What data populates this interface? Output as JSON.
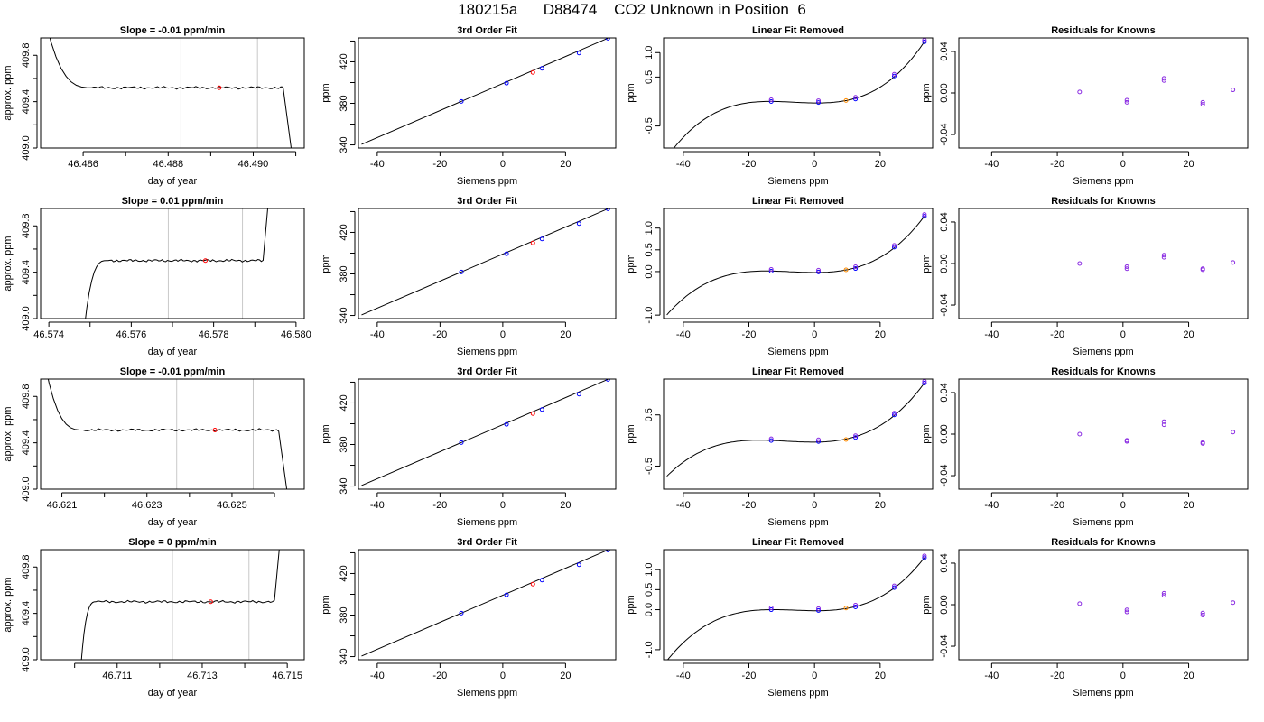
{
  "title": "180215a      D88474    CO2 Unknown in Position  6",
  "colors": {
    "line": "#000000",
    "time_marker": "#c8c8c8",
    "known_point": "#0000ff",
    "unknown_point": "#ff0000",
    "unknown_fit_point": "#ff8c00",
    "residual_point": "#8a2be2"
  },
  "chart_data": [
    {
      "type": "line",
      "row": 1,
      "col": 1,
      "title": "Slope =  -0.01  ppm/min",
      "xlabel": "day of year",
      "ylabel": "approx. ppm",
      "xlim": [
        46.485,
        46.4912
      ],
      "ylim": [
        409.0,
        409.95
      ],
      "xticks": [
        46.486,
        46.487,
        46.488,
        46.489,
        46.49,
        46.491
      ],
      "xtick_labels": [
        "46.486",
        "",
        "46.488",
        "",
        "46.490",
        ""
      ],
      "yticks": [
        409.0,
        409.2,
        409.4,
        409.6,
        409.8
      ],
      "ytick_labels": [
        "409.0",
        "",
        "409.4",
        "",
        "409.8"
      ],
      "vlines": [
        46.4883,
        46.4901
      ],
      "unknown_marker": [
        46.4892,
        409.52
      ],
      "trace_level": 409.52,
      "trace_start": 46.4862,
      "trace_end": 46.4907,
      "rise_start": 46.485,
      "rise_start_value": 410.3,
      "drop_end": 46.491,
      "drop_end_value": 408.7,
      "edge": "start-high-end-drop"
    },
    {
      "type": "line",
      "row": 1,
      "col": 2,
      "title": "3rd Order Fit",
      "xlabel": "Siemens ppm",
      "ylabel": "ppm",
      "xlim": [
        -46,
        36
      ],
      "ylim": [
        337,
        443
      ],
      "xticks": [
        -40,
        -20,
        0,
        20
      ],
      "xtick_labels": [
        "-40",
        "-20",
        "0",
        "20"
      ],
      "yticks": [
        340,
        360,
        380,
        400,
        420,
        440
      ],
      "ytick_labels": [
        "340",
        "",
        "380",
        "",
        "420",
        ""
      ],
      "line": [
        [
          -45,
          340.5
        ],
        [
          33.5,
          442.7
        ]
      ],
      "known_x": [
        -13.2,
        1.2,
        12.5,
        24.3,
        33.5
      ],
      "known_y": [
        381.9,
        399.4,
        413.7,
        428.5,
        442.7
      ],
      "unknown_points": [
        [
          9.6,
          409.8
        ]
      ]
    },
    {
      "type": "line",
      "row": 1,
      "col": 3,
      "title": "Linear Fit Removed",
      "xlabel": "Siemens ppm",
      "ylabel": "ppm",
      "xlim": [
        -46,
        36
      ],
      "ylim": [
        -0.95,
        1.3
      ],
      "xticks": [
        -40,
        -20,
        0,
        20
      ],
      "xtick_labels": [
        "-40",
        "-20",
        "0",
        "20"
      ],
      "yticks": [
        -0.5,
        0.5,
        1.0
      ],
      "ytick_labels": [
        "-0.5",
        "0.5",
        "1.0"
      ],
      "curve_range": [
        -45,
        33.5
      ],
      "known_x": [
        -13.2,
        1.2,
        12.5,
        24.3,
        33.5
      ],
      "known_y": [
        0.0,
        -0.02,
        0.05,
        0.52,
        1.22
      ],
      "unknown_points": [
        [
          9.6,
          0.02
        ]
      ]
    },
    {
      "type": "scatter",
      "row": 1,
      "col": 4,
      "title": "Residuals for Knowns",
      "xlabel": "Siemens ppm",
      "ylabel": "ppm",
      "xlim": [
        -50,
        38
      ],
      "ylim": [
        -0.053,
        0.053
      ],
      "xticks": [
        -40,
        -20,
        0,
        20
      ],
      "xtick_labels": [
        "-40",
        "-20",
        "0",
        "20"
      ],
      "yticks": [
        -0.04,
        0.0,
        0.04
      ],
      "ytick_labels": [
        "-0.04",
        "0.00",
        "0.04"
      ],
      "x": [
        -13.2,
        1.2,
        1.2,
        12.5,
        12.5,
        24.3,
        24.3,
        33.5
      ],
      "y": [
        0.001,
        -0.007,
        -0.009,
        0.014,
        0.012,
        -0.009,
        -0.011,
        0.003
      ]
    },
    {
      "type": "line",
      "row": 2,
      "col": 1,
      "title": "Slope =  0.01  ppm/min",
      "xlabel": "day of year",
      "ylabel": "approx. ppm",
      "xlim": [
        46.5738,
        46.5802
      ],
      "ylim": [
        409.0,
        409.95
      ],
      "xticks": [
        46.574,
        46.575,
        46.576,
        46.577,
        46.578,
        46.579,
        46.58
      ],
      "xtick_labels": [
        "46.574",
        "",
        "46.576",
        "",
        "46.578",
        "",
        "46.580"
      ],
      "yticks": [
        409.0,
        409.2,
        409.4,
        409.6,
        409.8
      ],
      "ytick_labels": [
        "409.0",
        "",
        "409.4",
        "",
        "409.8"
      ],
      "vlines": [
        46.5769,
        46.5787
      ],
      "unknown_marker": [
        46.5778,
        409.5
      ],
      "trace_level": 409.5,
      "trace_start": 46.5754,
      "trace_end": 46.5792,
      "rise_start": 46.5748,
      "rise_start_value": 408.7,
      "drop_end": 46.5794,
      "drop_end_value": 410.3,
      "edge": "start-low-end-rise"
    },
    {
      "type": "line",
      "row": 2,
      "col": 2,
      "title": "3rd Order Fit",
      "xlabel": "Siemens ppm",
      "ylabel": "ppm",
      "xlim": [
        -46,
        36
      ],
      "ylim": [
        337,
        443
      ],
      "xticks": [
        -40,
        -20,
        0,
        20
      ],
      "xtick_labels": [
        "-40",
        "-20",
        "0",
        "20"
      ],
      "yticks": [
        340,
        360,
        380,
        400,
        420,
        440
      ],
      "ytick_labels": [
        "340",
        "",
        "380",
        "",
        "420",
        ""
      ],
      "line": [
        [
          -45,
          340.5
        ],
        [
          33.5,
          442.7
        ]
      ],
      "known_x": [
        -13.2,
        1.2,
        12.5,
        24.3,
        33.5
      ],
      "known_y": [
        381.9,
        399.4,
        413.7,
        428.5,
        442.7
      ],
      "unknown_points": [
        [
          9.6,
          409.8
        ]
      ]
    },
    {
      "type": "line",
      "row": 2,
      "col": 3,
      "title": "Linear Fit Removed",
      "xlabel": "Siemens ppm",
      "ylabel": "ppm",
      "xlim": [
        -46,
        36
      ],
      "ylim": [
        -1.08,
        1.45
      ],
      "xticks": [
        -40,
        -20,
        0,
        20
      ],
      "xtick_labels": [
        "-40",
        "-20",
        "0",
        "20"
      ],
      "yticks": [
        -1.0,
        0.0,
        0.5,
        1.0
      ],
      "ytick_labels": [
        "-1.0",
        "0.0",
        "0.5",
        "1.0"
      ],
      "curve_range": [
        -45,
        33.5
      ],
      "known_x": [
        -13.2,
        1.2,
        12.5,
        24.3,
        33.5
      ],
      "known_y": [
        0.01,
        -0.01,
        0.07,
        0.56,
        1.27
      ],
      "unknown_points": [
        [
          9.6,
          0.04
        ]
      ]
    },
    {
      "type": "scatter",
      "row": 2,
      "col": 4,
      "title": "Residuals for Knowns",
      "xlabel": "Siemens ppm",
      "ylabel": "ppm",
      "xlim": [
        -50,
        38
      ],
      "ylim": [
        -0.053,
        0.053
      ],
      "xticks": [
        -40,
        -20,
        0,
        20
      ],
      "xtick_labels": [
        "-40",
        "-20",
        "0",
        "20"
      ],
      "yticks": [
        -0.04,
        0.0,
        0.04
      ],
      "ytick_labels": [
        "-0.04",
        "0.00",
        "0.04"
      ],
      "x": [
        -13.2,
        1.2,
        1.2,
        12.5,
        12.5,
        24.3,
        24.3,
        33.5
      ],
      "y": [
        0.0,
        -0.003,
        -0.005,
        0.008,
        0.006,
        -0.005,
        -0.006,
        0.001
      ]
    },
    {
      "type": "line",
      "row": 3,
      "col": 1,
      "title": "Slope =  -0.01  ppm/min",
      "xlabel": "day of year",
      "ylabel": "approx. ppm",
      "xlim": [
        46.6205,
        46.6267
      ],
      "ylim": [
        409.0,
        409.95
      ],
      "xticks": [
        46.621,
        46.622,
        46.623,
        46.624,
        46.625,
        46.626
      ],
      "xtick_labels": [
        "46.621",
        "",
        "46.623",
        "",
        "46.625",
        ""
      ],
      "yticks": [
        409.0,
        409.2,
        409.4,
        409.6,
        409.8
      ],
      "ytick_labels": [
        "409.0",
        "",
        "409.4",
        "",
        "409.8"
      ],
      "vlines": [
        46.6237,
        46.6255
      ],
      "unknown_marker": [
        46.6246,
        409.51
      ],
      "trace_level": 409.51,
      "trace_start": 46.6215,
      "trace_end": 46.6261,
      "rise_start": 46.6205,
      "rise_start_value": 410.3,
      "drop_end": 46.6264,
      "drop_end_value": 408.7,
      "edge": "start-high-end-drop"
    },
    {
      "type": "line",
      "row": 3,
      "col": 2,
      "title": "3rd Order Fit",
      "xlabel": "Siemens ppm",
      "ylabel": "ppm",
      "xlim": [
        -46,
        36
      ],
      "ylim": [
        337,
        443
      ],
      "xticks": [
        -40,
        -20,
        0,
        20
      ],
      "xtick_labels": [
        "-40",
        "-20",
        "0",
        "20"
      ],
      "yticks": [
        340,
        360,
        380,
        400,
        420,
        440
      ],
      "ytick_labels": [
        "340",
        "",
        "380",
        "",
        "420",
        ""
      ],
      "line": [
        [
          -45,
          340.5
        ],
        [
          33.5,
          442.7
        ]
      ],
      "known_x": [
        -13.2,
        1.2,
        12.5,
        24.3,
        33.5
      ],
      "known_y": [
        381.9,
        399.4,
        413.7,
        428.5,
        442.7
      ],
      "unknown_points": [
        [
          9.6,
          409.8
        ]
      ]
    },
    {
      "type": "line",
      "row": 3,
      "col": 3,
      "title": "Linear Fit Removed",
      "xlabel": "Siemens ppm",
      "ylabel": "ppm",
      "xlim": [
        -46,
        36
      ],
      "ylim": [
        -0.95,
        1.2
      ],
      "xticks": [
        -40,
        -20,
        0,
        20
      ],
      "xtick_labels": [
        "-40",
        "-20",
        "0",
        "20"
      ],
      "yticks": [
        -0.5,
        0.5
      ],
      "ytick_labels": [
        "-0.5",
        "0.5"
      ],
      "curve_range": [
        -45,
        33.5
      ],
      "known_x": [
        -13.2,
        1.2,
        12.5,
        24.3,
        33.5
      ],
      "known_y": [
        0.0,
        -0.02,
        0.06,
        0.5,
        1.12
      ],
      "unknown_points": [
        [
          9.6,
          0.02
        ]
      ]
    },
    {
      "type": "scatter",
      "row": 3,
      "col": 4,
      "title": "Residuals for Knowns",
      "xlabel": "Siemens ppm",
      "ylabel": "ppm",
      "xlim": [
        -50,
        38
      ],
      "ylim": [
        -0.053,
        0.053
      ],
      "xticks": [
        -40,
        -20,
        0,
        20
      ],
      "xtick_labels": [
        "-40",
        "-20",
        "0",
        "20"
      ],
      "yticks": [
        -0.04,
        0.0,
        0.04
      ],
      "ytick_labels": [
        "-0.04",
        "0.00",
        "0.04"
      ],
      "x": [
        -13.2,
        1.2,
        1.2,
        12.5,
        12.5,
        24.3,
        24.3,
        33.5
      ],
      "y": [
        0.0,
        -0.006,
        -0.007,
        0.012,
        0.009,
        -0.008,
        -0.009,
        0.002
      ]
    },
    {
      "type": "line",
      "row": 4,
      "col": 1,
      "title": "Slope =  0  ppm/min",
      "xlabel": "day of year",
      "ylabel": "approx. ppm",
      "xlim": [
        46.7092,
        46.7154
      ],
      "ylim": [
        409.0,
        409.95
      ],
      "xticks": [
        46.709,
        46.71,
        46.711,
        46.712,
        46.713,
        46.714,
        46.715
      ],
      "xtick_labels": [
        "46.709",
        "",
        "46.711",
        "",
        "46.713",
        "",
        "46.715"
      ],
      "yticks": [
        409.0,
        409.2,
        409.4,
        409.6,
        409.8
      ],
      "ytick_labels": [
        "409.0",
        "",
        "409.4",
        "",
        "409.8"
      ],
      "vlines": [
        46.7123,
        46.7141
      ],
      "unknown_marker": [
        46.7132,
        409.5
      ],
      "trace_level": 409.5,
      "trace_start": 46.7105,
      "trace_end": 46.7147,
      "rise_start": 46.7101,
      "rise_start_value": 408.7,
      "drop_end": 46.7149,
      "drop_end_value": 410.3,
      "edge": "start-low-end-rise"
    },
    {
      "type": "line",
      "row": 4,
      "col": 2,
      "title": "3rd Order Fit",
      "xlabel": "Siemens ppm",
      "ylabel": "ppm",
      "xlim": [
        -46,
        36
      ],
      "ylim": [
        337,
        443
      ],
      "xticks": [
        -40,
        -20,
        0,
        20
      ],
      "xtick_labels": [
        "-40",
        "-20",
        "0",
        "20"
      ],
      "yticks": [
        340,
        360,
        380,
        400,
        420,
        440
      ],
      "ytick_labels": [
        "340",
        "",
        "380",
        "",
        "420",
        ""
      ],
      "line": [
        [
          -45,
          340.5
        ],
        [
          33.5,
          442.7
        ]
      ],
      "known_x": [
        -13.2,
        1.2,
        12.5,
        24.3,
        33.5
      ],
      "known_y": [
        381.9,
        399.4,
        413.7,
        428.5,
        442.7
      ],
      "unknown_points": [
        [
          9.6,
          409.8
        ]
      ]
    },
    {
      "type": "line",
      "row": 4,
      "col": 3,
      "title": "Linear Fit Removed",
      "xlabel": "Siemens ppm",
      "ylabel": "ppm",
      "xlim": [
        -46,
        36
      ],
      "ylim": [
        -1.25,
        1.5
      ],
      "xticks": [
        -40,
        -20,
        0,
        20
      ],
      "xtick_labels": [
        "-40",
        "-20",
        "0",
        "20"
      ],
      "yticks": [
        -1.0,
        0.0,
        0.5,
        1.0
      ],
      "ytick_labels": [
        "-1.0",
        "0.0",
        "0.5",
        "1.0"
      ],
      "curve_range": [
        -45,
        33.5
      ],
      "known_x": [
        -13.2,
        1.2,
        12.5,
        24.3,
        33.5
      ],
      "known_y": [
        0.0,
        -0.02,
        0.07,
        0.55,
        1.3
      ],
      "unknown_points": [
        [
          9.6,
          0.04
        ]
      ]
    },
    {
      "type": "scatter",
      "row": 4,
      "col": 4,
      "title": "Residuals for Knowns",
      "xlabel": "Siemens ppm",
      "ylabel": "ppm",
      "xlim": [
        -50,
        38
      ],
      "ylim": [
        -0.053,
        0.053
      ],
      "xticks": [
        -40,
        -20,
        0,
        20
      ],
      "xtick_labels": [
        "-40",
        "-20",
        "0",
        "20"
      ],
      "yticks": [
        -0.04,
        0.0,
        0.04
      ],
      "ytick_labels": [
        "-0.04",
        "0.00",
        "0.04"
      ],
      "x": [
        -13.2,
        1.2,
        1.2,
        12.5,
        12.5,
        24.3,
        24.3,
        33.5
      ],
      "y": [
        0.001,
        -0.005,
        -0.007,
        0.011,
        0.009,
        -0.008,
        -0.01,
        0.002
      ]
    }
  ]
}
